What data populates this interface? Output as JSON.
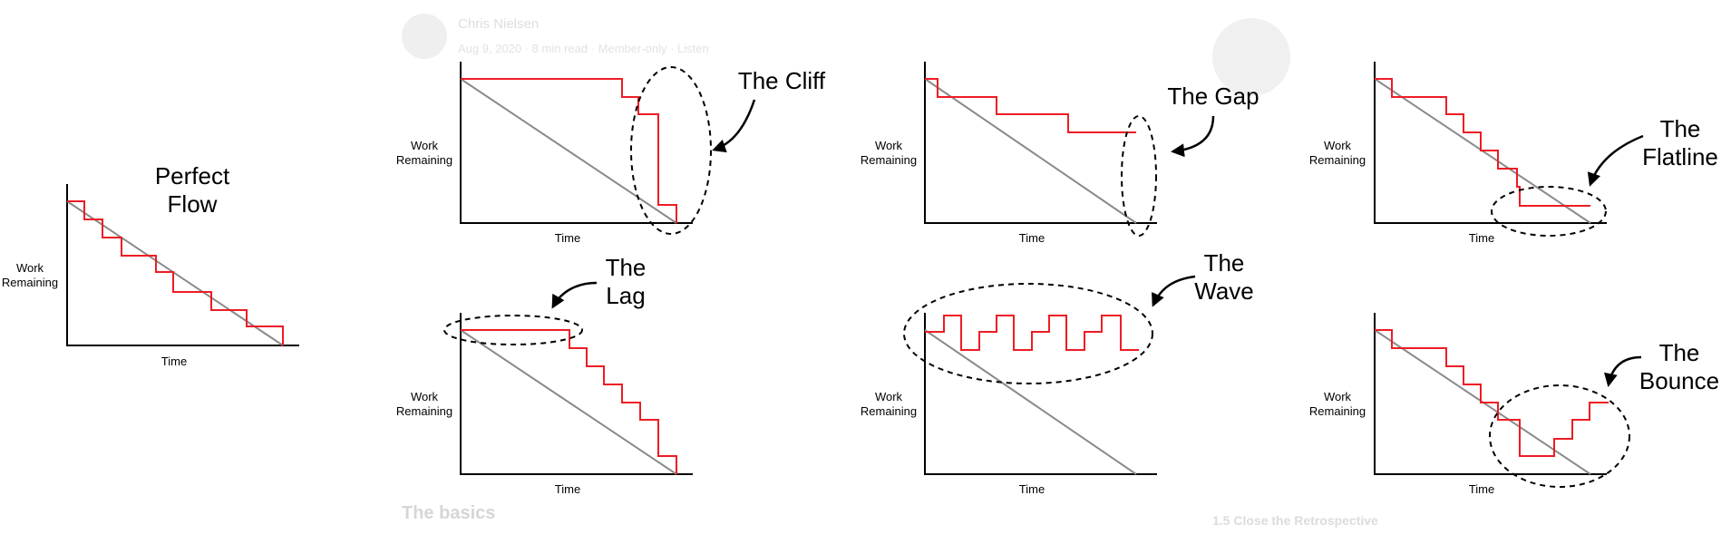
{
  "background": {
    "author": "Chris Nielsen",
    "meta": "Aug 9, 2020 · 8 min read · Member-only · Listen",
    "section_title": "The basics",
    "sidebar_item": "1.5 Close the Retrospective"
  },
  "labels": {
    "work_remaining_line1": "Work",
    "work_remaining_line2": "Remaining",
    "time": "Time"
  },
  "panels": {
    "perfect_flow": {
      "line1": "Perfect",
      "line2": "Flow"
    },
    "cliff": {
      "line1": "The Cliff"
    },
    "gap": {
      "line1": "The Gap"
    },
    "flatline": {
      "line1": "The",
      "line2": "Flatline"
    },
    "lag": {
      "line1": "The",
      "line2": "Lag"
    },
    "wave": {
      "line1": "The",
      "line2": "Wave"
    },
    "bounce": {
      "line1": "The",
      "line2": "Bounce"
    }
  },
  "colors": {
    "burn_line": "#ee1c24",
    "ideal_line": "#8a8a8a",
    "axis": "#000000"
  }
}
